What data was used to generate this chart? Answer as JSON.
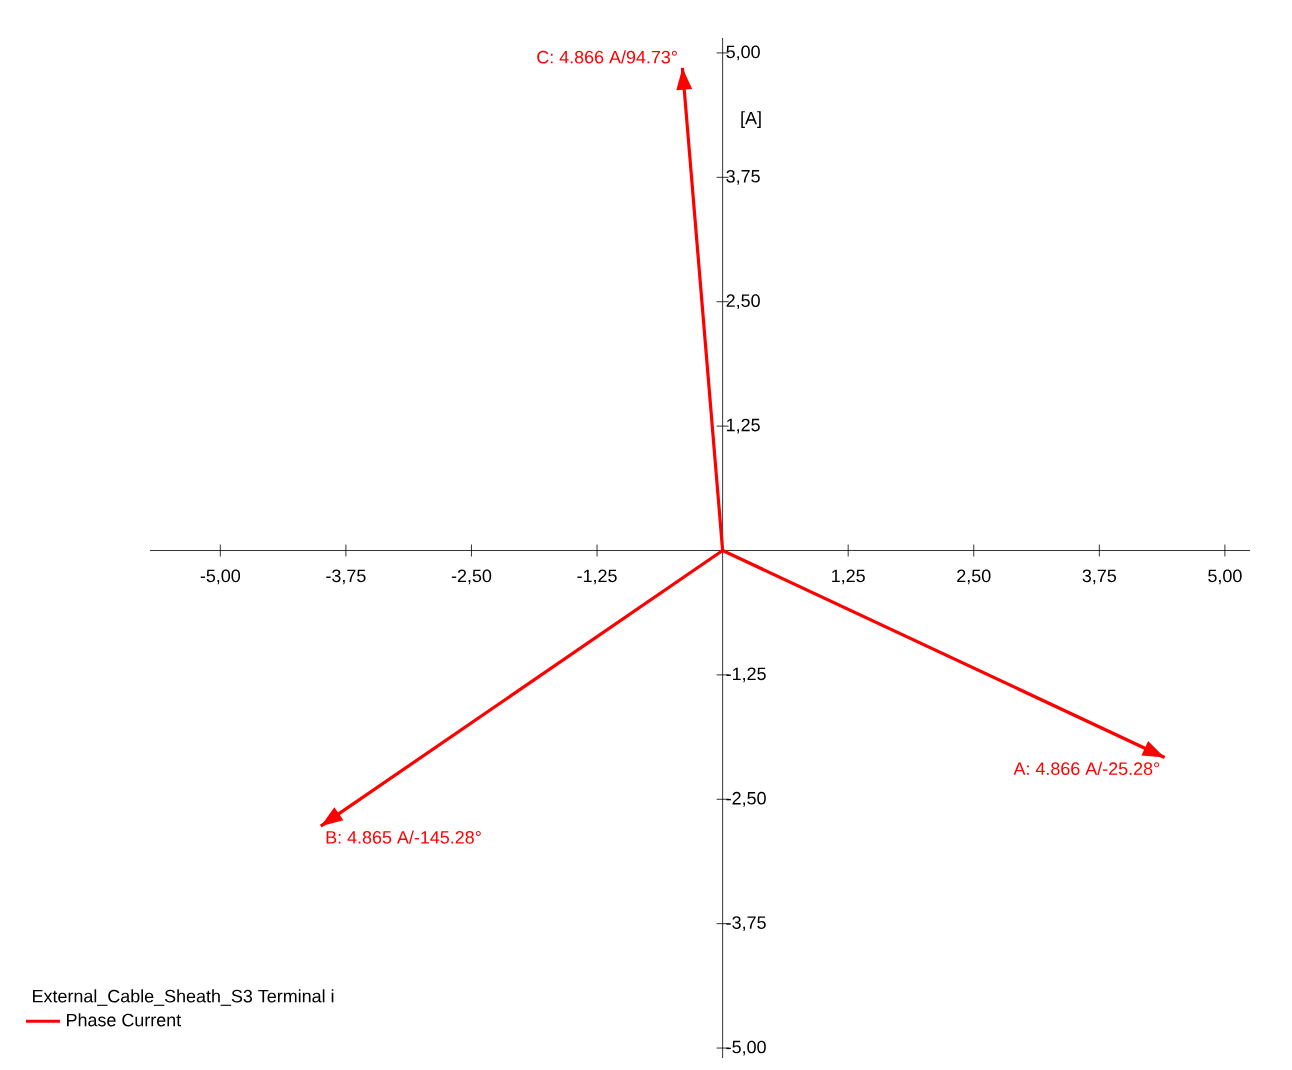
{
  "chart_data": {
    "type": "line",
    "legend_title": "External_Cable_Sheath_S3 Terminal i",
    "ylabel": "[A]",
    "series": [
      {
        "name": "Phase Current",
        "color": "#ff0000",
        "x": [
          0,
          4.4
        ],
        "values": [
          0,
          -2.08
        ]
      },
      {
        "color": "#ff0000",
        "x": [
          0,
          -4.0
        ],
        "values": [
          0,
          -2.77
        ]
      },
      {
        "color": "#ff0000",
        "x": [
          0,
          -0.4
        ],
        "values": [
          0,
          4.85
        ]
      }
    ],
    "annotations": [
      {
        "text": "A: 4.866 A/-25.28°",
        "x": 4.4,
        "y": -2.08
      },
      {
        "text": "B: 4.865 A/-145.28°",
        "x": -4.0,
        "y": -2.77
      },
      {
        "text": "C: 4.866 A/94.73°",
        "x": -0.4,
        "y": 4.85
      }
    ],
    "xlim": [
      -5.7,
      5.25
    ],
    "ylim": [
      -5.1,
      5.15
    ],
    "xticks": [
      {
        "value": -5,
        "label": "-5,00"
      },
      {
        "value": -3.75,
        "label": "-3,75"
      },
      {
        "value": -2.5,
        "label": "-2,50"
      },
      {
        "value": -1.25,
        "label": "-1,25"
      },
      {
        "value": 1.25,
        "label": "1,25"
      },
      {
        "value": 2.5,
        "label": "2,50"
      },
      {
        "value": 3.75,
        "label": "3,75"
      },
      {
        "value": 5,
        "label": "5,00"
      }
    ],
    "yticks": [
      {
        "value": -5,
        "label": "-5,00"
      },
      {
        "value": -3.75,
        "label": "-3,75"
      },
      {
        "value": -2.5,
        "label": "-2,50"
      },
      {
        "value": -1.25,
        "label": "-1,25"
      },
      {
        "value": 1.25,
        "label": "1,25"
      },
      {
        "value": 2.5,
        "label": "2,50"
      },
      {
        "value": 3.75,
        "label": "3,75"
      },
      {
        "value": 5,
        "label": "5,00"
      }
    ],
    "legend": "bottom left",
    "marker": "none"
  }
}
